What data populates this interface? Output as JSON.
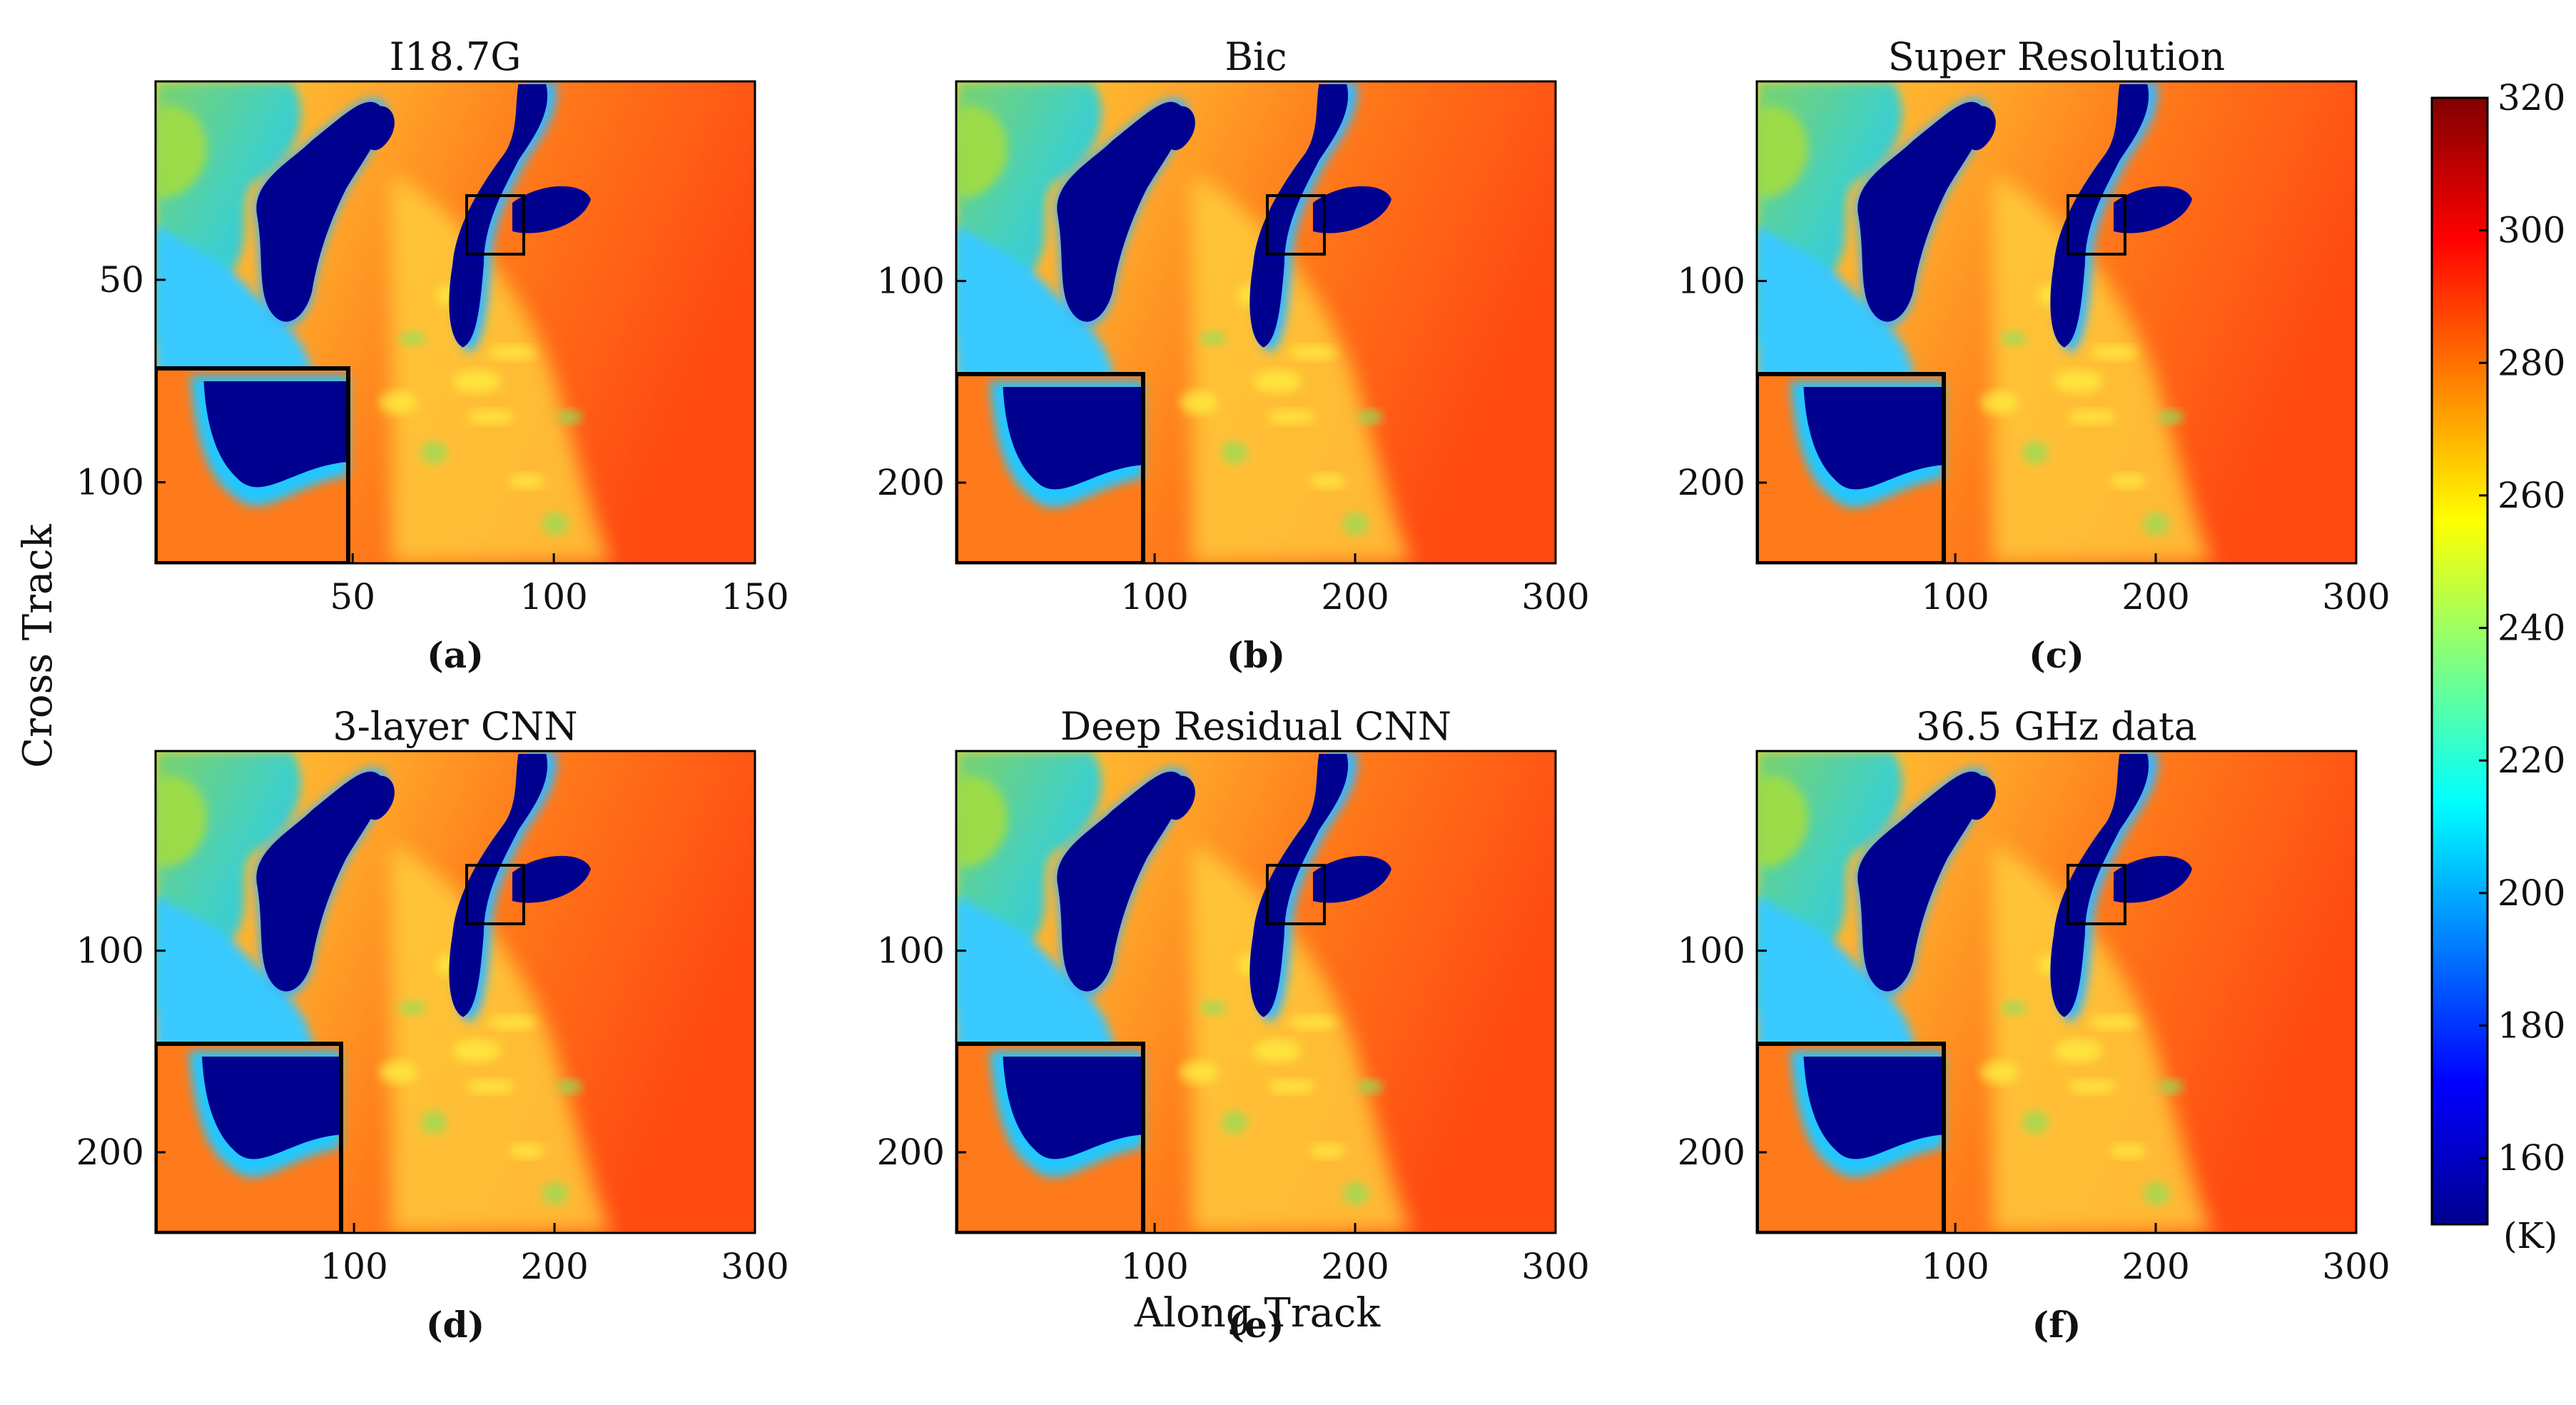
{
  "chart_data": {
    "type": "heatmap",
    "panels": [
      {
        "label": "(a)",
        "title": "I18.7G",
        "xticks": [
          "50",
          "100",
          "150"
        ],
        "xtick_values": [
          50,
          100,
          150
        ],
        "xlim": [
          1,
          150
        ],
        "yticks": [
          "50",
          "100"
        ],
        "ytick_values": [
          50,
          100
        ],
        "ylim": [
          1,
          120
        ]
      },
      {
        "label": "(b)",
        "title": "Bic",
        "xticks": [
          "100",
          "200",
          "300"
        ],
        "xtick_values": [
          100,
          200,
          300
        ],
        "xlim": [
          1,
          300
        ],
        "yticks": [
          "100",
          "200"
        ],
        "ytick_values": [
          100,
          200
        ],
        "ylim": [
          1,
          240
        ]
      },
      {
        "label": "(c)",
        "title": "Super Resolution",
        "xticks": [
          "100",
          "200",
          "300"
        ],
        "xtick_values": [
          100,
          200,
          300
        ],
        "xlim": [
          1,
          300
        ],
        "yticks": [
          "100",
          "200"
        ],
        "ytick_values": [
          100,
          200
        ],
        "ylim": [
          1,
          240
        ]
      },
      {
        "label": "(d)",
        "title": "3-layer CNN",
        "xticks": [
          "100",
          "200",
          "300"
        ],
        "xtick_values": [
          100,
          200,
          300
        ],
        "xlim": [
          1,
          300
        ],
        "yticks": [
          "100",
          "200"
        ],
        "ytick_values": [
          100,
          200
        ],
        "ylim": [
          1,
          240
        ]
      },
      {
        "label": "(e)",
        "title": "Deep Residual CNN",
        "xticks": [
          "100",
          "200",
          "300"
        ],
        "xtick_values": [
          100,
          200,
          300
        ],
        "xlim": [
          1,
          300
        ],
        "yticks": [
          "100",
          "200"
        ],
        "ytick_values": [
          100,
          200
        ],
        "ylim": [
          1,
          240
        ]
      },
      {
        "label": "(f)",
        "title": "36.5 GHz data",
        "xticks": [
          "100",
          "200",
          "300"
        ],
        "xtick_values": [
          100,
          200,
          300
        ],
        "xlim": [
          1,
          300
        ],
        "yticks": [
          "100",
          "200"
        ],
        "ytick_values": [
          100,
          200
        ],
        "ylim": [
          1,
          240
        ]
      }
    ],
    "xlabel": "Along Track",
    "ylabel": "Cross Track",
    "colorbar": {
      "min": 150,
      "max": 320,
      "ticks": [
        "160",
        "180",
        "200",
        "220",
        "240",
        "260",
        "280",
        "300",
        "320"
      ],
      "tick_values": [
        160,
        180,
        200,
        220,
        240,
        260,
        280,
        300,
        320
      ],
      "unit": "(K)",
      "colormap": "jet"
    },
    "colors": {
      "water": "#00008f",
      "land": "#ff6a00",
      "highland": "#36b8ff",
      "box": "#000000"
    }
  }
}
